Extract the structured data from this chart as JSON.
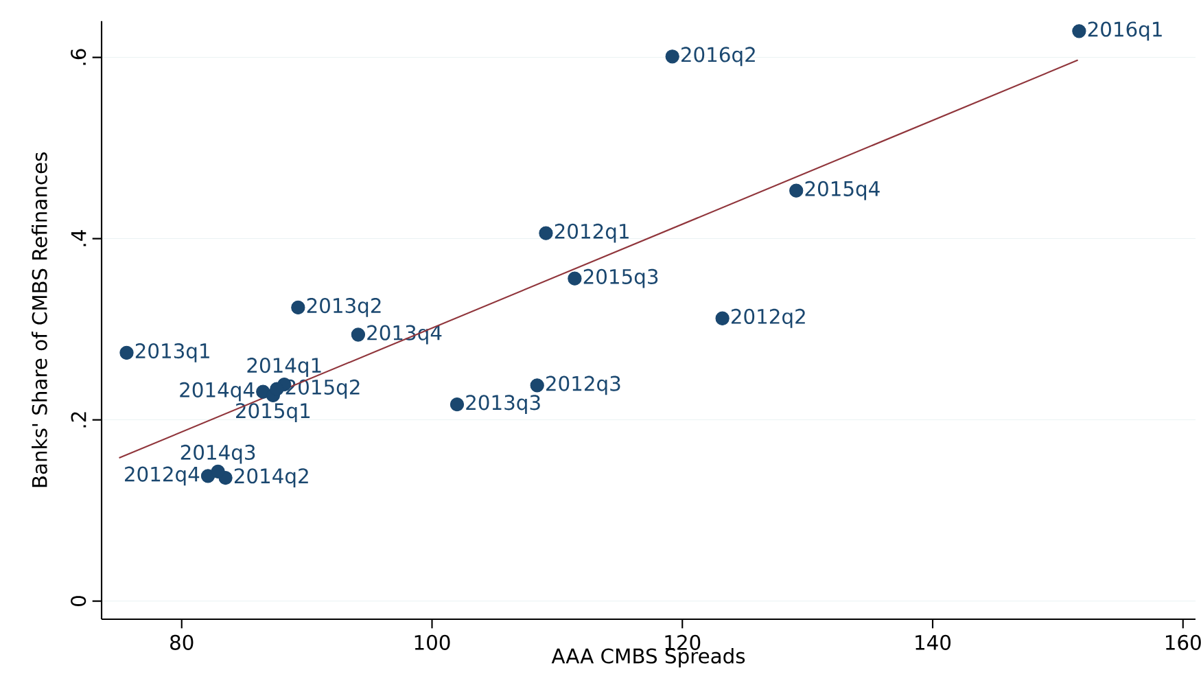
{
  "chart_data": {
    "type": "scatter",
    "xlabel": "AAA CMBS Spreads",
    "ylabel": "Banks' Share of CMBS Refinances",
    "xlim": [
      73.6,
      161
    ],
    "ylim": [
      -0.02,
      0.64
    ],
    "xticks": [
      80,
      100,
      120,
      140,
      160
    ],
    "yticks": [
      0,
      {
        "value": 0.2,
        "label": ".2"
      },
      {
        "value": 0.4,
        "label": ".4"
      },
      {
        "value": 0.6,
        "label": ".6"
      }
    ],
    "grid": "y",
    "series": [
      {
        "marker": "circle",
        "color": "#1a476f",
        "x": [
          109.1,
          123.2,
          108.4,
          82.1,
          75.6,
          89.3,
          102.0,
          94.1,
          88.2,
          83.5,
          82.9,
          86.5,
          87.3,
          87.6,
          111.4,
          129.1,
          151.7,
          119.2
        ],
        "values": [
          0.406,
          0.312,
          0.238,
          0.138,
          0.274,
          0.324,
          0.217,
          0.294,
          0.239,
          0.136,
          0.143,
          0.231,
          0.227,
          0.234,
          0.356,
          0.453,
          0.629,
          0.601
        ],
        "value_labels": [
          "2012q1",
          "2012q2",
          "2012q3",
          "2012q4",
          "2013q1",
          "2013q2",
          "2013q3",
          "2013q4",
          "2014q1",
          "2014q2",
          "2014q3",
          "2014q4",
          "2015q1",
          "2015q2",
          "2015q3",
          "2015q4",
          "2016q1",
          "2016q2"
        ]
      },
      {
        "type": "line",
        "marker": "none",
        "color": "#90353b",
        "x": [
          75.0,
          151.6
        ],
        "values": [
          0.158,
          0.597
        ]
      }
    ]
  }
}
